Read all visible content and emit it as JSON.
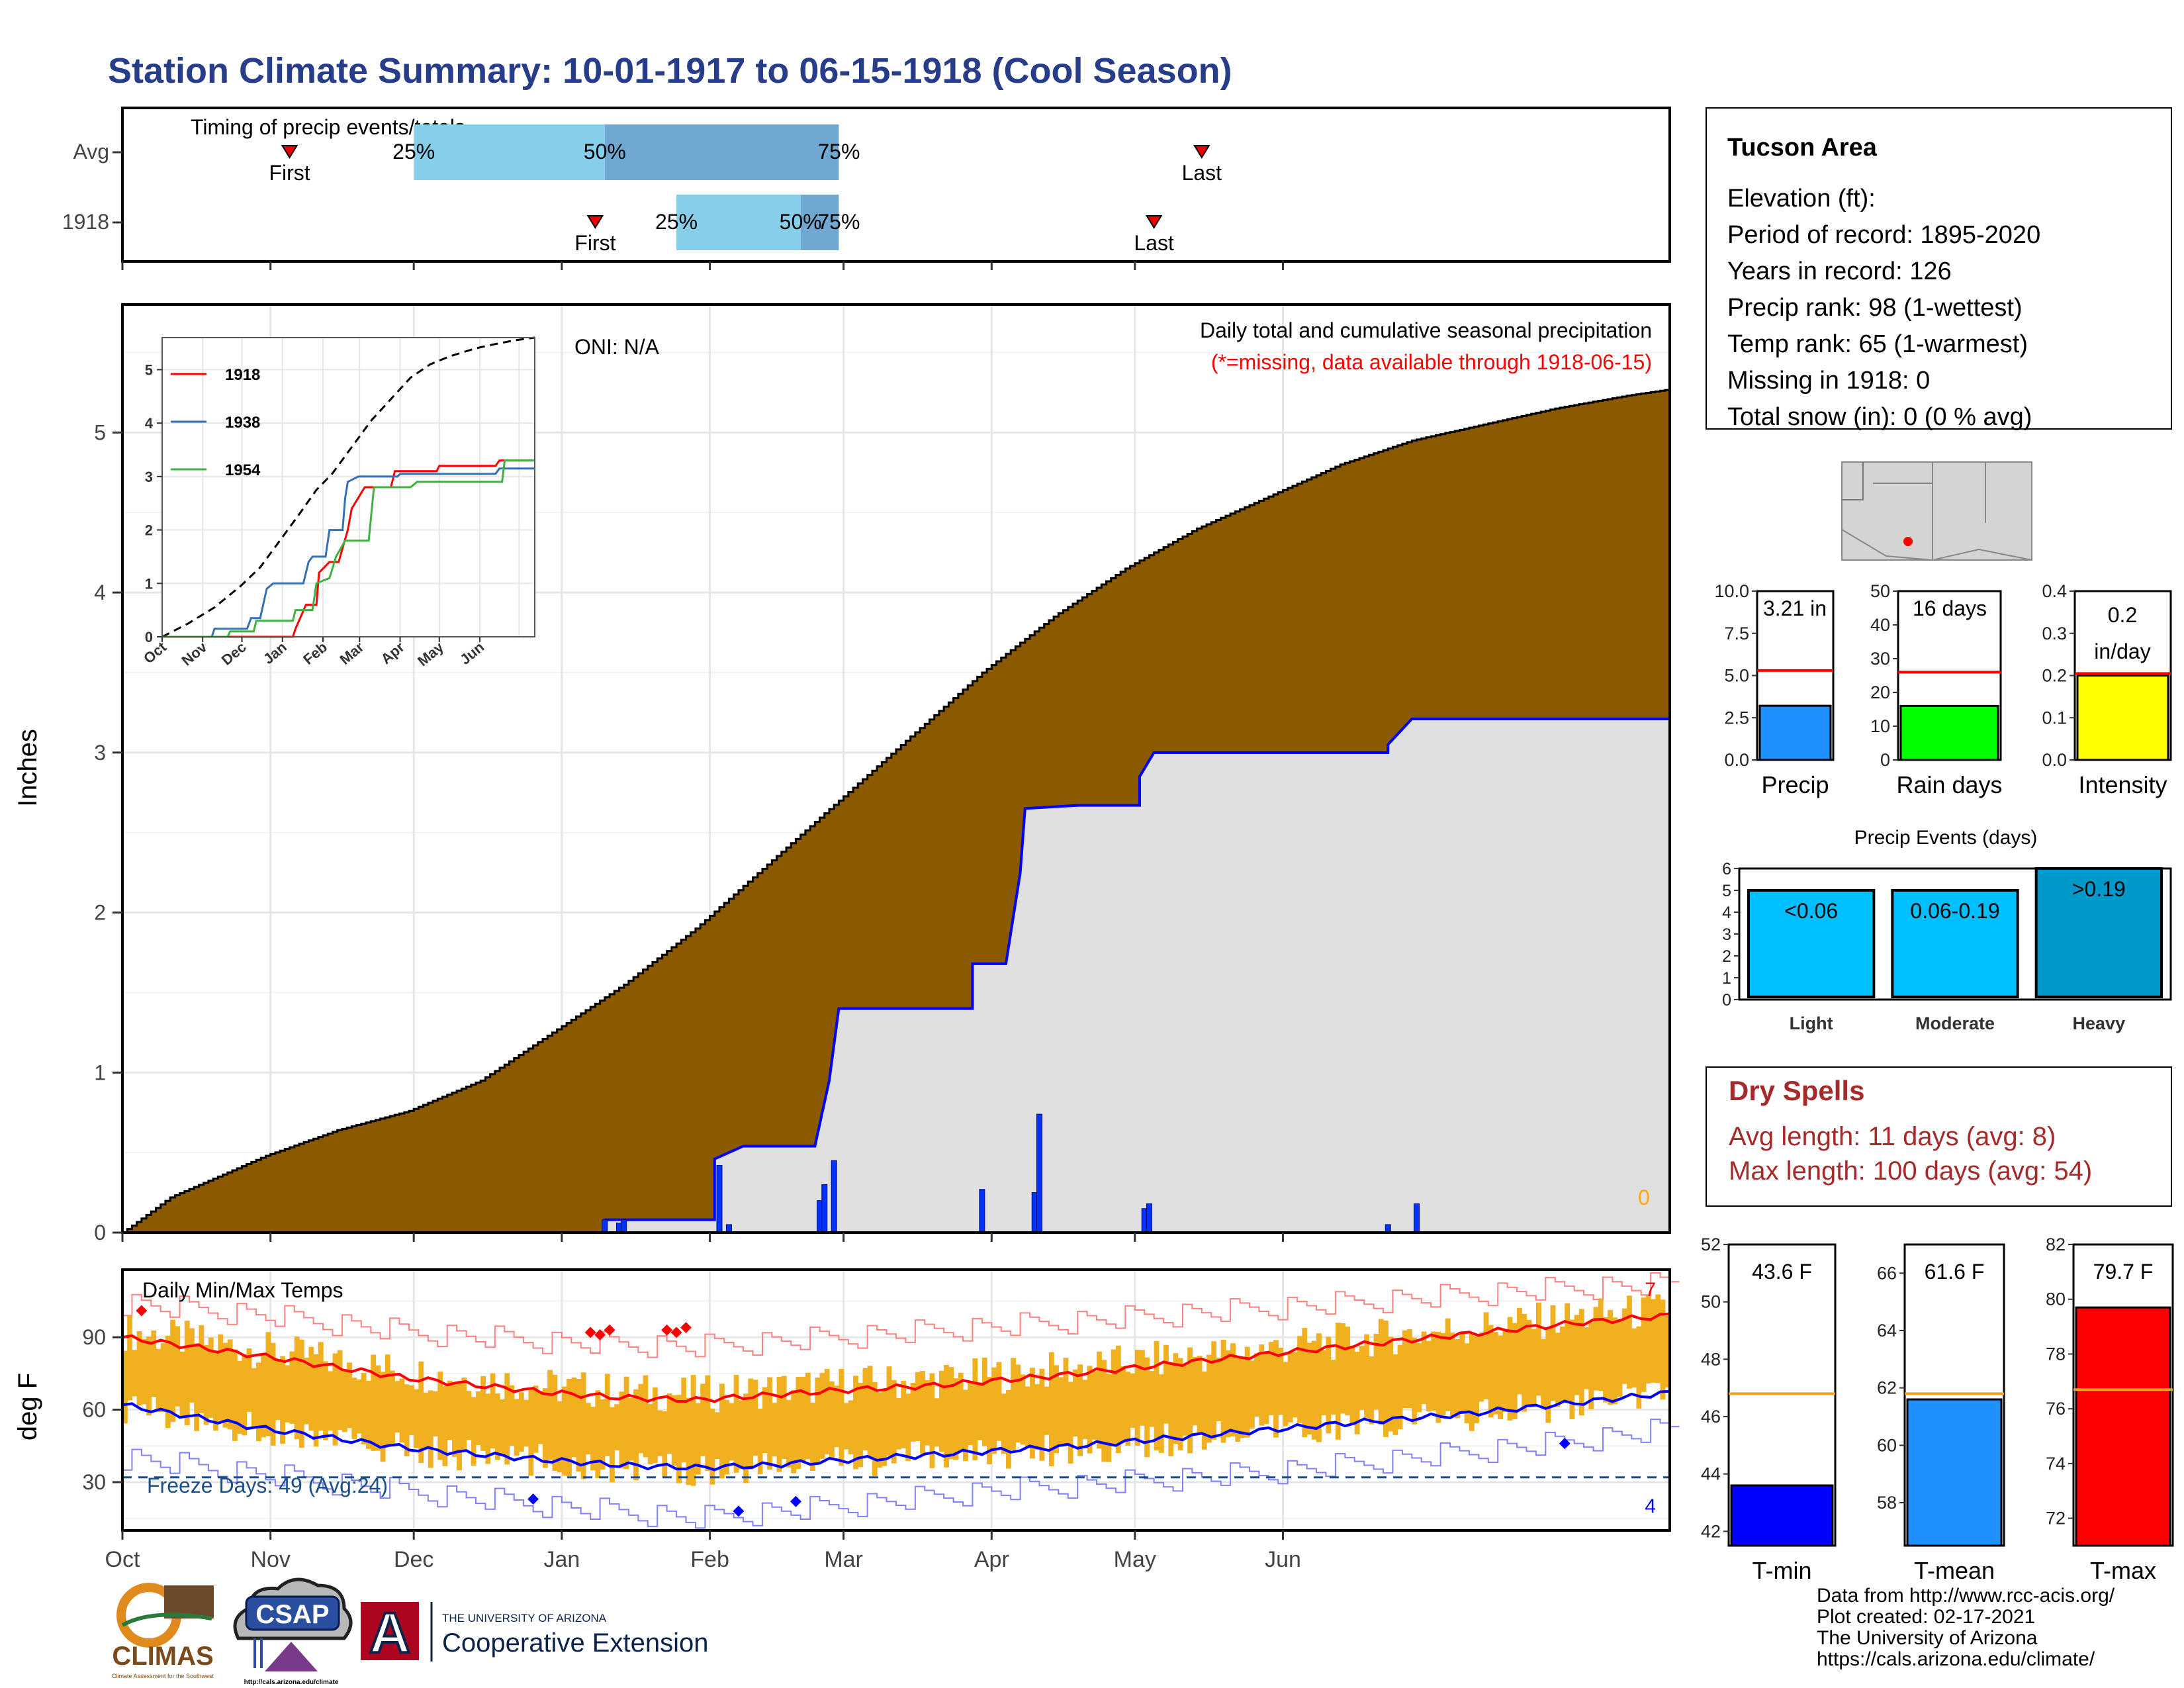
{
  "page": {
    "title": "Station Climate Summary: 10-01-1917 to 06-15-1918 (Cool Season)",
    "footer": {
      "lines": [
        "Data from http://www.rcc-acis.org/",
        "Plot created: 02-17-2021",
        "The University of Arizona",
        "https://cals.arizona.edu/climate/"
      ]
    },
    "logos": {
      "climas": "CLIMAS",
      "climas_sub": "Climate Assessment for the Southwest",
      "csap": "CSAP",
      "csap_url": "http://cals.arizona.edu/climate",
      "ua_line1": "THE UNIVERSITY OF ARIZONA",
      "ua_line2": "Cooperative Extension",
      "ua_letter": "A"
    }
  },
  "colors": {
    "title": "#283d8a",
    "cumulative_avg_fill": "#8b5a00",
    "cumulative_year_fill": "#e0e0e0",
    "cumulative_year_line": "#0000ff",
    "daily_precip": "#0033ff",
    "temp_bar": "#f0b020",
    "tmax_line": "#ff0000",
    "tmin_line": "#0000ff",
    "dry_spells": "#a52a2a",
    "light_blue": "#87ceeb",
    "steel_blue": "#6fa8d0",
    "freeze_line": "#1a4f8a"
  },
  "chart_data": [
    {
      "id": "timing",
      "type": "bar",
      "title": "Timing of precip events/totals",
      "rows": [
        {
          "label": "Avg",
          "first": "Nov",
          "first_date": "11-05",
          "q25_date": "12-01",
          "q50_date": "01-10",
          "q75_date": "02-28",
          "last_date": "05-15",
          "marks": [
            "First",
            "25%",
            "50%",
            "75%",
            "Last"
          ]
        },
        {
          "label": "1918",
          "first": "Jan",
          "first_date": "01-08",
          "q25_date": "01-25",
          "q50_date": "02-20",
          "q75_date": "02-28",
          "last_date": "05-05",
          "marks": [
            "First",
            "25%",
            "50%",
            "75%",
            "Last"
          ]
        }
      ]
    },
    {
      "id": "precip",
      "type": "area",
      "title": "Daily total and cumulative seasonal precipitation",
      "subtitle": "(*=missing, data available through 1918-06-15)",
      "annotation": "ONI: N/A",
      "ylabel": "Inches",
      "ylim": [
        0,
        5.8
      ],
      "yticks": [
        0,
        1,
        2,
        3,
        4,
        5
      ],
      "xticks": [
        "Oct",
        "Nov",
        "Dec",
        "Jan",
        "Feb",
        "Mar",
        "Apr",
        "May",
        "Jun"
      ],
      "missing_count": "0",
      "cumulative_avg": [
        [
          0,
          0
        ],
        [
          10,
          0.22
        ],
        [
          30,
          0.48
        ],
        [
          45,
          0.64
        ],
        [
          60,
          0.76
        ],
        [
          75,
          0.95
        ],
        [
          90,
          1.25
        ],
        [
          105,
          1.55
        ],
        [
          120,
          1.9
        ],
        [
          135,
          2.3
        ],
        [
          150,
          2.7
        ],
        [
          165,
          3.1
        ],
        [
          180,
          3.5
        ],
        [
          195,
          3.85
        ],
        [
          210,
          4.15
        ],
        [
          225,
          4.4
        ],
        [
          240,
          4.6
        ],
        [
          255,
          4.8
        ],
        [
          270,
          4.95
        ],
        [
          285,
          5.05
        ],
        [
          300,
          5.15
        ],
        [
          315,
          5.23
        ],
        [
          324,
          5.27
        ]
      ],
      "cumulative_1918": [
        [
          0,
          0
        ],
        [
          101,
          0
        ],
        [
          101,
          0.08
        ],
        [
          124,
          0.08
        ],
        [
          124,
          0.46
        ],
        [
          130,
          0.54
        ],
        [
          145,
          0.54
        ],
        [
          148,
          0.95
        ],
        [
          150,
          1.4
        ],
        [
          178,
          1.4
        ],
        [
          178,
          1.68
        ],
        [
          185,
          1.68
        ],
        [
          188,
          2.25
        ],
        [
          189,
          2.65
        ],
        [
          200,
          2.67
        ],
        [
          213,
          2.67
        ],
        [
          213,
          2.85
        ],
        [
          216,
          3.0
        ],
        [
          265,
          3.0
        ],
        [
          265,
          3.05
        ],
        [
          270,
          3.21
        ],
        [
          324,
          3.21
        ]
      ],
      "daily_1918": [
        [
          101,
          0.08
        ],
        [
          104,
          0.06
        ],
        [
          105,
          0.08
        ],
        [
          125,
          0.42
        ],
        [
          127,
          0.05
        ],
        [
          146,
          0.2
        ],
        [
          147,
          0.3
        ],
        [
          149,
          0.45
        ],
        [
          180,
          0.27
        ],
        [
          191,
          0.25
        ],
        [
          192,
          0.74
        ],
        [
          214,
          0.15
        ],
        [
          215,
          0.18
        ],
        [
          265,
          0.05
        ],
        [
          271,
          0.18
        ]
      ]
    },
    {
      "id": "inset",
      "type": "line",
      "series": [
        {
          "name": "1918",
          "color": "#ff0000",
          "values": [
            [
              0,
              0
            ],
            [
              100,
              0
            ],
            [
              102,
              0.15
            ],
            [
              110,
              0.6
            ],
            [
              118,
              0.6
            ],
            [
              120,
              1.2
            ],
            [
              128,
              1.4
            ],
            [
              135,
              1.4
            ],
            [
              142,
              2.0
            ],
            [
              145,
              2.4
            ],
            [
              150,
              2.6
            ],
            [
              155,
              2.8
            ],
            [
              175,
              2.8
            ],
            [
              178,
              3.1
            ],
            [
              210,
              3.1
            ],
            [
              212,
              3.2
            ],
            [
              255,
              3.2
            ],
            [
              258,
              3.3
            ],
            [
              285,
              3.3
            ]
          ]
        },
        {
          "name": "1938",
          "color": "#3370b8",
          "values": [
            [
              0,
              0
            ],
            [
              38,
              0
            ],
            [
              40,
              0.15
            ],
            [
              65,
              0.15
            ],
            [
              68,
              0.35
            ],
            [
              75,
              0.35
            ],
            [
              80,
              0.9
            ],
            [
              85,
              1.0
            ],
            [
              108,
              1.0
            ],
            [
              112,
              1.4
            ],
            [
              115,
              1.5
            ],
            [
              125,
              1.5
            ],
            [
              128,
              2.0
            ],
            [
              138,
              2.0
            ],
            [
              140,
              2.6
            ],
            [
              142,
              2.9
            ],
            [
              150,
              3.0
            ],
            [
              180,
              3.0
            ],
            [
              182,
              3.05
            ],
            [
              255,
              3.05
            ],
            [
              258,
              3.15
            ],
            [
              285,
              3.15
            ]
          ]
        },
        {
          "name": "1954",
          "color": "#40b040",
          "values": [
            [
              0,
              0
            ],
            [
              50,
              0
            ],
            [
              52,
              0.1
            ],
            [
              70,
              0.1
            ],
            [
              72,
              0.3
            ],
            [
              100,
              0.3
            ],
            [
              102,
              0.5
            ],
            [
              115,
              0.5
            ],
            [
              118,
              1.0
            ],
            [
              128,
              1.1
            ],
            [
              133,
              1.5
            ],
            [
              140,
              1.8
            ],
            [
              158,
              1.8
            ],
            [
              162,
              2.8
            ],
            [
              190,
              2.8
            ],
            [
              195,
              2.9
            ],
            [
              260,
              2.9
            ],
            [
              262,
              3.3
            ],
            [
              285,
              3.3
            ]
          ]
        }
      ],
      "avg_dashed": [
        [
          0,
          0
        ],
        [
          20,
          0.25
        ],
        [
          40,
          0.55
        ],
        [
          60,
          0.95
        ],
        [
          75,
          1.3
        ],
        [
          90,
          1.8
        ],
        [
          105,
          2.3
        ],
        [
          118,
          2.75
        ],
        [
          130,
          3.05
        ],
        [
          145,
          3.55
        ],
        [
          160,
          4.05
        ],
        [
          175,
          4.45
        ],
        [
          190,
          4.85
        ],
        [
          205,
          5.1
        ],
        [
          220,
          5.25
        ],
        [
          240,
          5.4
        ],
        [
          255,
          5.48
        ],
        [
          270,
          5.55
        ],
        [
          285,
          5.6
        ]
      ],
      "yticks": [
        0,
        1,
        2,
        3,
        4,
        5
      ],
      "ylim": [
        0,
        5.6
      ],
      "xticks": [
        "Oct",
        "Nov",
        "Dec",
        "Jan",
        "Feb",
        "Mar",
        "Apr",
        "May",
        "Jun"
      ]
    },
    {
      "id": "temps",
      "type": "bar",
      "title": "Daily Min/Max Temps",
      "ylabel": "deg F",
      "ylim": [
        10,
        118
      ],
      "yticks": [
        30,
        60,
        90
      ],
      "xticks": [
        "Oct",
        "Nov",
        "Dec",
        "Jan",
        "Feb",
        "Mar",
        "Apr",
        "May",
        "Jun"
      ],
      "freeze_label": "Freeze Days: 49 (Avg:24)",
      "freeze_temp": 32,
      "record_high_count": "7",
      "record_low_count": "4",
      "avg_tmax": [
        [
          0,
          90
        ],
        [
          30,
          82
        ],
        [
          60,
          73
        ],
        [
          90,
          67
        ],
        [
          105,
          65
        ],
        [
          120,
          64
        ],
        [
          135,
          66
        ],
        [
          150,
          68
        ],
        [
          170,
          70
        ],
        [
          195,
          74
        ],
        [
          225,
          80
        ],
        [
          255,
          86
        ],
        [
          280,
          91
        ],
        [
          305,
          96
        ],
        [
          324,
          99
        ]
      ],
      "avg_tmin": [
        [
          0,
          62
        ],
        [
          30,
          52
        ],
        [
          60,
          44
        ],
        [
          90,
          39
        ],
        [
          105,
          37
        ],
        [
          120,
          36
        ],
        [
          135,
          37
        ],
        [
          150,
          39
        ],
        [
          175,
          42
        ],
        [
          200,
          45
        ],
        [
          230,
          50
        ],
        [
          260,
          55
        ],
        [
          280,
          58
        ],
        [
          305,
          63
        ],
        [
          324,
          67
        ]
      ],
      "record_max": [
        [
          0,
          104
        ],
        [
          30,
          99
        ],
        [
          60,
          92
        ],
        [
          90,
          88
        ],
        [
          120,
          86
        ],
        [
          150,
          90
        ],
        [
          180,
          94
        ],
        [
          210,
          98
        ],
        [
          240,
          102
        ],
        [
          270,
          106
        ],
        [
          300,
          110
        ],
        [
          324,
          112
        ]
      ],
      "record_min": [
        [
          0,
          40
        ],
        [
          30,
          33
        ],
        [
          60,
          26
        ],
        [
          90,
          20
        ],
        [
          120,
          15
        ],
        [
          150,
          20
        ],
        [
          180,
          26
        ],
        [
          210,
          30
        ],
        [
          240,
          34
        ],
        [
          270,
          40
        ],
        [
          300,
          46
        ],
        [
          324,
          52
        ]
      ],
      "record_high_points": [
        [
          4,
          101
        ],
        [
          98,
          92
        ],
        [
          100,
          91
        ],
        [
          102,
          93
        ],
        [
          114,
          93
        ],
        [
          116,
          92
        ],
        [
          118,
          94
        ]
      ],
      "record_low_points": [
        [
          86,
          23
        ],
        [
          129,
          18
        ],
        [
          141,
          22
        ],
        [
          302,
          46
        ]
      ]
    }
  ],
  "station_panel": {
    "name": "Tucson Area",
    "lines": [
      "Elevation (ft):",
      "Period of record: 1895-2020",
      "Years in record: 126",
      "Precip rank: 98 (1-wettest)",
      "Temp rank: 65 (1-warmest)",
      "Missing in 1918: 0",
      "Total snow (in): 0 (0 % avg)"
    ]
  },
  "summary_bars": [
    {
      "label": "Precip",
      "value": 3.21,
      "value_label": "3.21 in",
      "avg": 5.3,
      "ylim": [
        0,
        10
      ],
      "yticks": [
        "0.0",
        "2.5",
        "5.0",
        "7.5",
        "10.0"
      ],
      "color": "#1e90ff"
    },
    {
      "label": "Rain days",
      "value": 16,
      "value_label": "16 days",
      "avg": 26,
      "ylim": [
        0,
        50
      ],
      "yticks": [
        "0",
        "10",
        "20",
        "30",
        "40",
        "50"
      ],
      "color": "#00ff00"
    },
    {
      "label": "Intensity",
      "value": 0.2,
      "value_label": "0.2 in/day",
      "avg": 0.205,
      "ylim": [
        0,
        0.4
      ],
      "yticks": [
        "0.0",
        "0.1",
        "0.2",
        "0.3",
        "0.4"
      ],
      "color": "#ffff00"
    }
  ],
  "events": {
    "title": "Precip Events (days)",
    "ylim": [
      0,
      6
    ],
    "yticks": [
      "0",
      "1",
      "2",
      "3",
      "4",
      "5",
      "6"
    ],
    "bars": [
      {
        "label": "Light",
        "tag": "<0.06",
        "value": 5,
        "color": "#00bfff"
      },
      {
        "label": "Moderate",
        "tag": "0.06-0.19",
        "value": 5,
        "color": "#00bfff"
      },
      {
        "label": "Heavy",
        "tag": ">0.19",
        "value": 6,
        "color": "#0099cc"
      }
    ]
  },
  "dry_spells": {
    "title": "Dry Spells",
    "avg_length": "Avg length: 11 days (avg: 8)",
    "max_length": "Max length: 100 days (avg: 54)"
  },
  "temp_bars": [
    {
      "label": "T-min",
      "value": 43.6,
      "value_label": "43.6 F",
      "avg": 46.8,
      "ylim": [
        41.5,
        52
      ],
      "yticks": [
        "42",
        "44",
        "46",
        "48",
        "50",
        "52"
      ],
      "color": "#0000ff"
    },
    {
      "label": "T-mean",
      "value": 61.6,
      "value_label": "61.6 F",
      "avg": 61.8,
      "ylim": [
        56.5,
        67
      ],
      "yticks": [
        "58",
        "60",
        "62",
        "64",
        "66"
      ],
      "color": "#1e90ff"
    },
    {
      "label": "T-max",
      "value": 79.7,
      "value_label": "79.7 F",
      "avg": 76.7,
      "ylim": [
        71,
        82
      ],
      "yticks": [
        "72",
        "74",
        "76",
        "78",
        "80",
        "82"
      ],
      "color": "#ff0000"
    }
  ]
}
